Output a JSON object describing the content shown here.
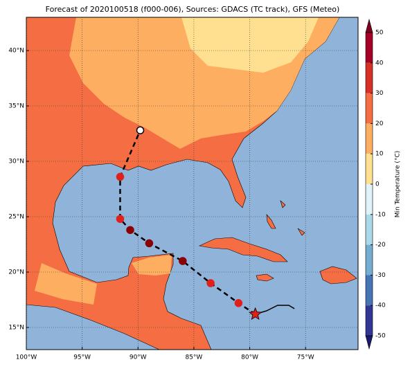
{
  "map": {
    "title": "Forecast of 2020100518 (f000-006), Sources: GDACS (TC track), GFS (Meteo)",
    "xlim": [
      -100,
      -70.3
    ],
    "ylim": [
      13,
      43
    ],
    "xticks": [
      {
        "value": -100,
        "label": "100°W"
      },
      {
        "value": -95,
        "label": "95°W"
      },
      {
        "value": -90,
        "label": "90°W"
      },
      {
        "value": -85,
        "label": "85°W"
      },
      {
        "value": -80,
        "label": "80°W"
      },
      {
        "value": -75,
        "label": "75°W"
      }
    ],
    "yticks": [
      {
        "value": 15,
        "label": "15°N"
      },
      {
        "value": 20,
        "label": "20°N"
      },
      {
        "value": 25,
        "label": "25°N"
      },
      {
        "value": 30,
        "label": "30°N"
      },
      {
        "value": 35,
        "label": "35°N"
      },
      {
        "value": 40,
        "label": "40°N"
      }
    ],
    "grid": true,
    "colorbar": {
      "label": "Min Temperature (°C)",
      "lim": [
        -50,
        50
      ],
      "ticks": [
        50,
        40,
        30,
        20,
        10,
        0,
        -10,
        -20,
        -30,
        -40,
        -50
      ],
      "colors": [
        "#a50026",
        "#d73027",
        "#f46d43",
        "#fdae61",
        "#fee090",
        "#e0f3f8",
        "#abd9e9",
        "#74add1",
        "#4575b4",
        "#313695"
      ],
      "extend_colors": [
        "#800020",
        "#1a1a6e"
      ]
    },
    "track": {
      "observed": {
        "lon": [
          -79.5,
          -78.5,
          -77.5,
          -76.5,
          -76.0
        ],
        "lat": [
          16.2,
          16.5,
          17.0,
          17.0,
          16.7
        ]
      },
      "points": [
        {
          "lon": -79.5,
          "lat": 16.2,
          "color": "#e0201b"
        },
        {
          "lon": -81.0,
          "lat": 17.2,
          "color": "#e0201b"
        },
        {
          "lon": -83.5,
          "lat": 19.0,
          "color": "#e0201b"
        },
        {
          "lon": -86.0,
          "lat": 21.0,
          "color": "#8b0000"
        },
        {
          "lon": -89.0,
          "lat": 22.6,
          "color": "#8b0000"
        },
        {
          "lon": -90.7,
          "lat": 23.8,
          "color": "#8b0000"
        },
        {
          "lon": -91.6,
          "lat": 24.8,
          "color": "#e0201b"
        },
        {
          "lon": -91.6,
          "lat": 28.6,
          "color": "#e0201b"
        },
        {
          "lon": -89.8,
          "lat": 32.8,
          "color": "#ffffff"
        }
      ]
    }
  }
}
